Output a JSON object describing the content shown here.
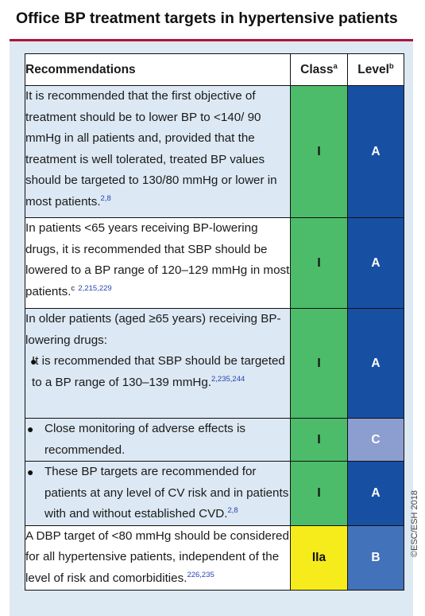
{
  "title": "Office BP treatment targets in hypertensive patients",
  "header": {
    "recommendations": "Recommendations",
    "class": "Class",
    "class_sup": "a",
    "level": "Level",
    "level_sup": "b"
  },
  "rows": [
    {
      "text": "It is recommended that the first objective of treatment should be to lower BP to <140/ 90 mmHg in all patients and, provided that the treatment is well tolerated, treated BP values should be targeted to 130/80 mmHg or lower in most patients.",
      "ref": "2,8",
      "class": "I",
      "level": "A"
    },
    {
      "text": "In patients <65 years receiving BP-lowering drugs, it is recommended that SBP should be lowered to a BP range of 120–129 mmHg in most patients.",
      "note": "c",
      "ref": "2,215,229",
      "class": "I",
      "level": "A"
    },
    {
      "intro": "In older patients (aged ≥65 years) receiving BP-lowering drugs:",
      "bullet": "It is recommended that SBP should be targeted to a BP range of 130–139 mmHg.",
      "ref": "2,235,244",
      "class": "I",
      "level": "A"
    },
    {
      "bullet": "Close monitoring of adverse effects is recommended.",
      "class": "I",
      "level": "C"
    },
    {
      "bullet": "These BP targets are recommended for patients at any level of CV risk and in patients with and without established CVD.",
      "ref": "2,8",
      "class": "I",
      "level": "A"
    },
    {
      "text": "A DBP target of <80 mmHg should be considered for all hypertensive patients, independent of the level of risk and comorbidities.",
      "ref": "226,235",
      "class": "IIa",
      "level": "B"
    }
  ],
  "copyright": "©ESC/ESH 2018",
  "colors": {
    "title_rule": "#b0123a",
    "panel": "#dde9f3",
    "class_I": "#4cbb6a",
    "class_IIa": "#f7ec1b",
    "level_A": "#1750a3",
    "level_B": "#4272b9",
    "level_C": "#8c9ed0"
  }
}
